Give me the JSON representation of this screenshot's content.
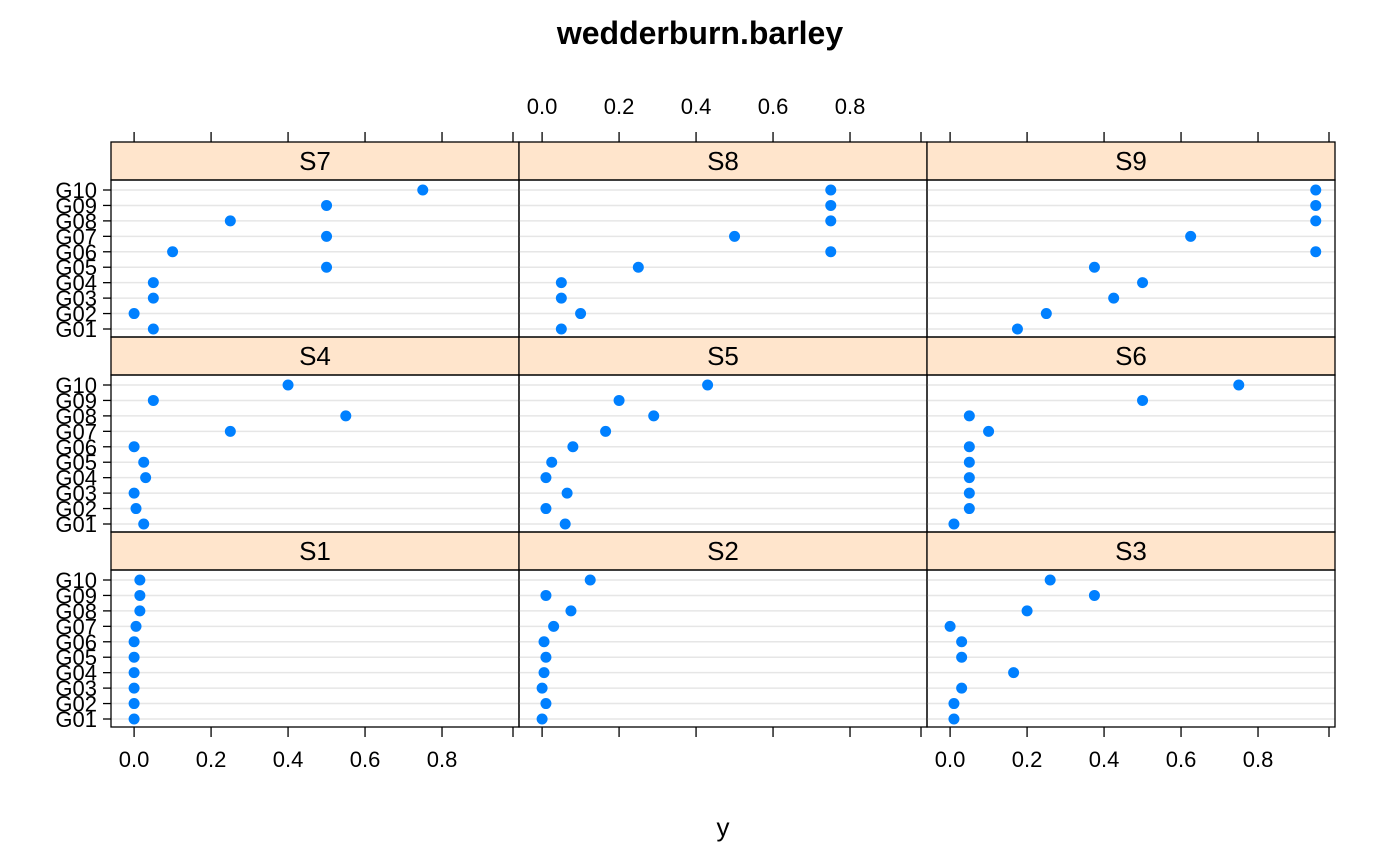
{
  "chart_data": {
    "type": "scatter",
    "title": "wedderburn.barley",
    "xlabel": "y",
    "ylabel": "",
    "xlim": [
      -0.06,
      1.0
    ],
    "x_ticks": [
      "0.0",
      "0.2",
      "0.4",
      "0.6",
      "0.8"
    ],
    "x_tick_values": [
      0.0,
      0.2,
      0.4,
      0.6,
      0.8
    ],
    "y_categories": [
      "G01",
      "G02",
      "G03",
      "G04",
      "G05",
      "G06",
      "G07",
      "G08",
      "G09",
      "G10"
    ],
    "grid": true,
    "colors": {
      "point": "#0080ff",
      "strip_bg": "#ffe5cc",
      "grid": "#e6e6e6",
      "frame": "#000000"
    },
    "panels": [
      {
        "name": "S1",
        "values": [
          0.0,
          0.0,
          0.0,
          0.0,
          0.0,
          0.0,
          0.005,
          0.015,
          0.015,
          0.015
        ]
      },
      {
        "name": "S2",
        "values": [
          0.0,
          0.01,
          0.0,
          0.005,
          0.01,
          0.005,
          0.03,
          0.075,
          0.01,
          0.125
        ]
      },
      {
        "name": "S3",
        "values": [
          0.01,
          0.01,
          0.03,
          0.165,
          0.03,
          0.03,
          0.0,
          0.2,
          0.375,
          0.26
        ]
      },
      {
        "name": "S4",
        "values": [
          0.025,
          0.005,
          0.0,
          0.03,
          0.025,
          0.0,
          0.25,
          0.55,
          0.05,
          0.4
        ]
      },
      {
        "name": "S5",
        "values": [
          0.06,
          0.01,
          0.065,
          0.01,
          0.025,
          0.08,
          0.165,
          0.29,
          0.2,
          0.43
        ]
      },
      {
        "name": "S6",
        "values": [
          0.01,
          0.05,
          0.05,
          0.05,
          0.05,
          0.05,
          0.1,
          0.05,
          0.5,
          0.75
        ]
      },
      {
        "name": "S7",
        "values": [
          0.05,
          0.0,
          0.05,
          0.05,
          0.5,
          0.1,
          0.5,
          0.25,
          0.5,
          0.75
        ]
      },
      {
        "name": "S8",
        "values": [
          0.05,
          0.1,
          0.05,
          0.05,
          0.25,
          0.75,
          0.5,
          0.75,
          0.75,
          0.75
        ]
      },
      {
        "name": "S9",
        "values": [
          0.175,
          0.25,
          0.425,
          0.5,
          0.375,
          0.95,
          0.625,
          0.95,
          0.95,
          0.95
        ]
      }
    ]
  }
}
